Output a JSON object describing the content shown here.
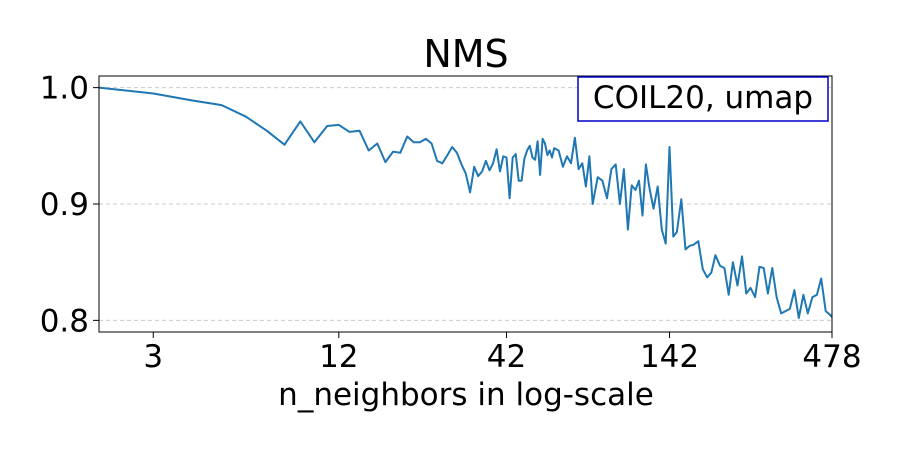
{
  "chart_data": {
    "type": "line",
    "title": "NMS",
    "xlabel": "n_neighbors in log-scale",
    "ylabel": "",
    "x_scale": "log",
    "xlim": [
      2,
      478
    ],
    "ylim": [
      0.79,
      1.01
    ],
    "x_ticks": [
      {
        "value": 3,
        "label": "3"
      },
      {
        "value": 12,
        "label": "12"
      },
      {
        "value": 42,
        "label": "42"
      },
      {
        "value": 142,
        "label": "142"
      },
      {
        "value": 478,
        "label": "478"
      }
    ],
    "y_ticks": [
      {
        "value": 0.8,
        "label": "0.8"
      },
      {
        "value": 0.9,
        "label": "0.9"
      },
      {
        "value": 1.0,
        "label": "1.0"
      }
    ],
    "grid": "horizontal dashed",
    "annotation": "COIL20, umap",
    "annotation_placement": "top-right",
    "colors": {
      "line": "#1f77b4",
      "annotation_border": "#0000cc",
      "grid": "#cccccc"
    },
    "series": [
      {
        "x": [
          2,
          3,
          4,
          5,
          6,
          7,
          8,
          9,
          10,
          11,
          12,
          13,
          14,
          15,
          16,
          17,
          18,
          19,
          20,
          21,
          22,
          23,
          24,
          25,
          26,
          27,
          28,
          29,
          30,
          31,
          32,
          33,
          34,
          35,
          36,
          37,
          38,
          39,
          40,
          41,
          42,
          43,
          44,
          45,
          46,
          47,
          48,
          49,
          50,
          51,
          52,
          53,
          54,
          55,
          56,
          57,
          58,
          59,
          60,
          62,
          64,
          66,
          68,
          70,
          72,
          74,
          76,
          78,
          80,
          83,
          86,
          89,
          92,
          95,
          98,
          101,
          104,
          107,
          110,
          113,
          116,
          119,
          122,
          126,
          130,
          134,
          138,
          142,
          146,
          150,
          155,
          160,
          165,
          170,
          176,
          182,
          188,
          194,
          200,
          207,
          214,
          221,
          228,
          236,
          244,
          252,
          260,
          269,
          278,
          287,
          296,
          306,
          316,
          327,
          338,
          349,
          361,
          373,
          386,
          399,
          413,
          427,
          441,
          456,
          470,
          478
        ],
        "y": [
          1.0,
          0.995,
          0.989,
          0.985,
          0.975,
          0.963,
          0.951,
          0.971,
          0.953,
          0.967,
          0.968,
          0.962,
          0.963,
          0.946,
          0.952,
          0.936,
          0.945,
          0.944,
          0.958,
          0.953,
          0.953,
          0.956,
          0.952,
          0.937,
          0.935,
          0.942,
          0.949,
          0.944,
          0.934,
          0.926,
          0.91,
          0.932,
          0.924,
          0.928,
          0.937,
          0.929,
          0.935,
          0.947,
          0.928,
          0.941,
          0.94,
          0.905,
          0.94,
          0.943,
          0.92,
          0.92,
          0.939,
          0.946,
          0.95,
          0.94,
          0.938,
          0.954,
          0.925,
          0.956,
          0.952,
          0.942,
          0.946,
          0.94,
          0.948,
          0.946,
          0.932,
          0.941,
          0.935,
          0.957,
          0.93,
          0.935,
          0.915,
          0.941,
          0.9,
          0.923,
          0.92,
          0.905,
          0.93,
          0.934,
          0.9,
          0.93,
          0.878,
          0.916,
          0.912,
          0.92,
          0.89,
          0.934,
          0.915,
          0.896,
          0.915,
          0.878,
          0.866,
          0.949,
          0.872,
          0.876,
          0.904,
          0.861,
          0.864,
          0.865,
          0.868,
          0.844,
          0.837,
          0.841,
          0.856,
          0.847,
          0.845,
          0.822,
          0.85,
          0.83,
          0.855,
          0.823,
          0.828,
          0.82,
          0.846,
          0.845,
          0.823,
          0.845,
          0.82,
          0.806,
          0.808,
          0.81,
          0.826,
          0.802,
          0.822,
          0.806,
          0.82,
          0.822,
          0.836,
          0.808,
          0.805,
          0.803
        ]
      }
    ]
  }
}
